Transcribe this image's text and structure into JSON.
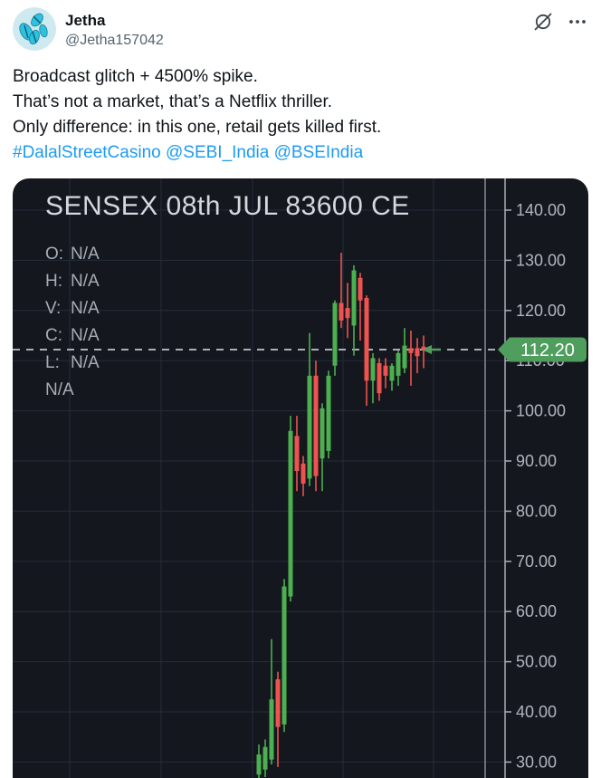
{
  "header": {
    "display_name": "Jetha",
    "handle": "@Jetha157042",
    "avatar": "blue-butterflies-avatar",
    "grok_icon": "grok-slash-circle",
    "more_icon": "ellipsis"
  },
  "tweet": {
    "lines": [
      "Broadcast glitch + 4500% spike.",
      "That’s not a market, that’s a Netflix thriller.",
      "Only difference: in this one, retail gets killed first."
    ],
    "links": [
      "#DalalStreetCasino",
      "@SEBI_India",
      "@BSEIndia"
    ]
  },
  "chart_data": {
    "type": "candlestick",
    "title": "SENSEX 08th JUL 83600 CE",
    "legend": [
      {
        "label": "O:",
        "value": "N/A"
      },
      {
        "label": "H:",
        "value": "N/A"
      },
      {
        "label": "V:",
        "value": "N/A"
      },
      {
        "label": "C:",
        "value": "N/A"
      },
      {
        "label": "L:",
        "value": "N/A"
      },
      {
        "label": "",
        "value": "N/A"
      }
    ],
    "last_price": 112.2,
    "last_price_label": "112.20",
    "ylim": [
      26,
      142
    ],
    "grid": true,
    "legend_position": "top-left",
    "y_ticks": [
      {
        "value": 140,
        "label": "140.00"
      },
      {
        "value": 130,
        "label": "130.00"
      },
      {
        "value": 120,
        "label": "120.00"
      },
      {
        "value": 110,
        "label": "110.00"
      },
      {
        "value": 100,
        "label": "100.00"
      },
      {
        "value": 90,
        "label": "90.00"
      },
      {
        "value": 80,
        "label": "80.00"
      },
      {
        "value": 70,
        "label": "70.00"
      },
      {
        "value": 60,
        "label": "60.00"
      },
      {
        "value": 50,
        "label": "50.00"
      },
      {
        "value": 40,
        "label": "40.00"
      },
      {
        "value": 30,
        "label": "30.00"
      }
    ],
    "colors": {
      "up": "#4caf50",
      "down": "#ef5350",
      "price_tag": "#4f9e5e",
      "dashed_line": "#aab0b6",
      "background": "#14171d",
      "grid": "#232e3d",
      "axis": "#aaadb4",
      "tick_text": "#b2b5be",
      "link": "#1d9bf0"
    },
    "candles": [
      {
        "o": 27.5,
        "h": 33.5,
        "l": 26.5,
        "c": 31.5
      },
      {
        "o": 28.5,
        "h": 34.5,
        "l": 27.0,
        "c": 33.0
      },
      {
        "o": 30.5,
        "h": 54.5,
        "l": 29.5,
        "c": 42.5
      },
      {
        "o": 46.5,
        "h": 48.0,
        "l": 29.0,
        "c": 37.0
      },
      {
        "o": 37.5,
        "h": 66.5,
        "l": 36.0,
        "c": 65.0
      },
      {
        "o": 63.0,
        "h": 99.0,
        "l": 62.0,
        "c": 96.0
      },
      {
        "o": 95.0,
        "h": 99.0,
        "l": 84.0,
        "c": 88.0
      },
      {
        "o": 89.5,
        "h": 91.0,
        "l": 83.0,
        "c": 85.5
      },
      {
        "o": 86.5,
        "h": 115.5,
        "l": 85.0,
        "c": 107.0
      },
      {
        "o": 107.0,
        "h": 110.0,
        "l": 84.0,
        "c": 87.0
      },
      {
        "o": 90.5,
        "h": 101.5,
        "l": 84.0,
        "c": 100.5
      },
      {
        "o": 92.0,
        "h": 108.0,
        "l": 90.5,
        "c": 107.0
      },
      {
        "o": 109.0,
        "h": 122.0,
        "l": 107.0,
        "c": 121.5
      },
      {
        "o": 121.5,
        "h": 131.5,
        "l": 116.5,
        "c": 118.0
      },
      {
        "o": 120.5,
        "h": 125.5,
        "l": 114.5,
        "c": 118.5
      },
      {
        "o": 117.0,
        "h": 129.0,
        "l": 111.0,
        "c": 128.0
      },
      {
        "o": 126.5,
        "h": 127.5,
        "l": 114.0,
        "c": 122.0
      },
      {
        "o": 122.5,
        "h": 123.0,
        "l": 101.0,
        "c": 106.0
      },
      {
        "o": 106.0,
        "h": 111.5,
        "l": 101.5,
        "c": 110.5
      },
      {
        "o": 109.5,
        "h": 110.5,
        "l": 102.0,
        "c": 103.5
      },
      {
        "o": 109.0,
        "h": 110.5,
        "l": 104.5,
        "c": 107.0
      },
      {
        "o": 106.0,
        "h": 109.5,
        "l": 104.0,
        "c": 109.0
      },
      {
        "o": 107.0,
        "h": 112.0,
        "l": 105.0,
        "c": 111.5
      },
      {
        "o": 108.5,
        "h": 116.5,
        "l": 107.5,
        "c": 113.0
      },
      {
        "o": 112.5,
        "h": 116.0,
        "l": 105.0,
        "c": 111.5
      },
      {
        "o": 112.5,
        "h": 114.5,
        "l": 107.5,
        "c": 110.9
      },
      {
        "o": 112.8,
        "h": 115.0,
        "l": 108.5,
        "c": 112.2
      }
    ]
  }
}
